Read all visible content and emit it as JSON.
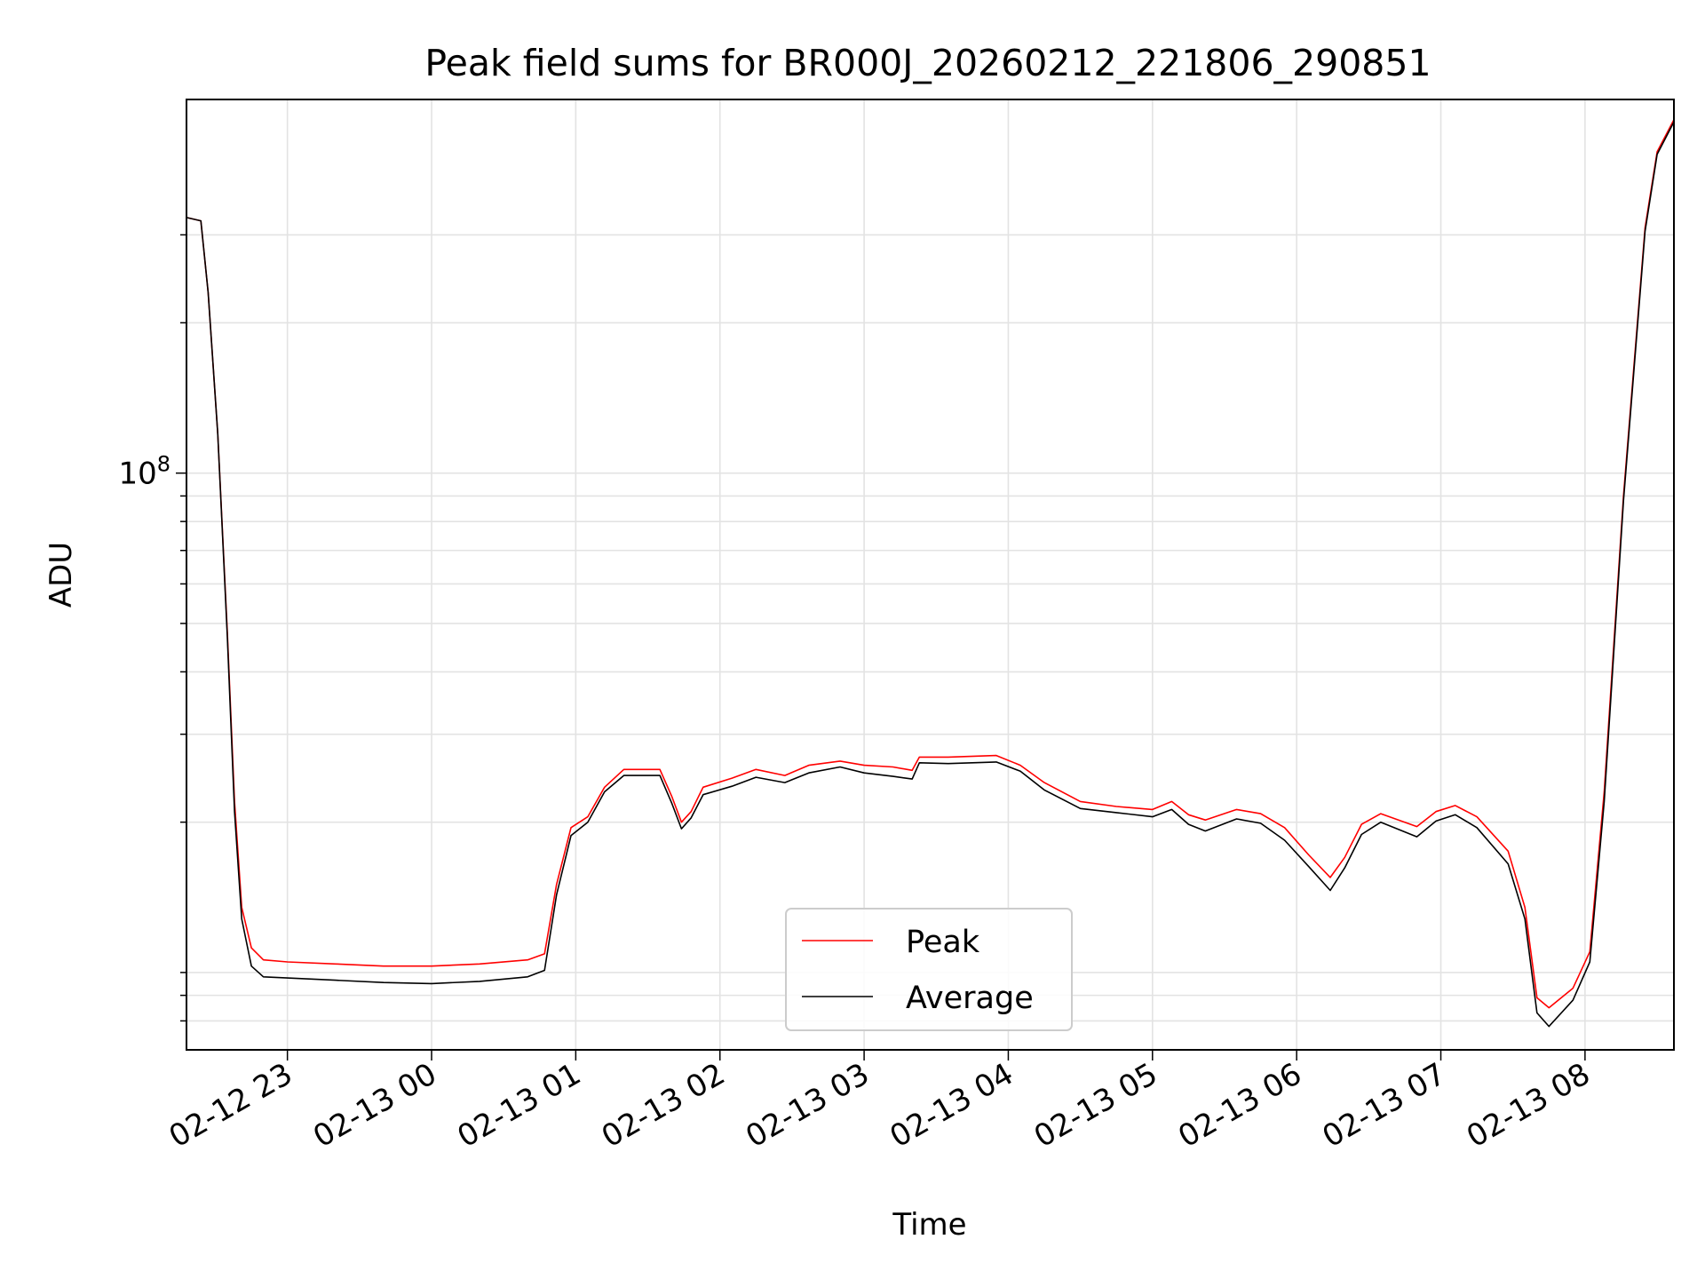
{
  "chart_data": {
    "type": "line",
    "title": "Peak field sums for BR000J_20260212_221806_290851",
    "xlabel": "Time",
    "ylabel": "ADU",
    "y_scale": "log",
    "ylim": [
      7000000,
      560000000
    ],
    "xlim": [
      "2026-02-12 22:18",
      "2026-02-13 08:37"
    ],
    "x_ticks": [
      {
        "t": "2026-02-12 23:00",
        "label": "02-12 23"
      },
      {
        "t": "2026-02-13 00:00",
        "label": "02-13 00"
      },
      {
        "t": "2026-02-13 01:00",
        "label": "02-13 01"
      },
      {
        "t": "2026-02-13 02:00",
        "label": "02-13 02"
      },
      {
        "t": "2026-02-13 03:00",
        "label": "02-13 03"
      },
      {
        "t": "2026-02-13 04:00",
        "label": "02-13 04"
      },
      {
        "t": "2026-02-13 05:00",
        "label": "02-13 05"
      },
      {
        "t": "2026-02-13 06:00",
        "label": "02-13 06"
      },
      {
        "t": "2026-02-13 07:00",
        "label": "02-13 07"
      },
      {
        "t": "2026-02-13 08:00",
        "label": "02-13 08"
      }
    ],
    "y_ticks_major": [
      {
        "value": 100000000,
        "label_base": "10",
        "label_exp": "8"
      }
    ],
    "y_ticks_minor": [
      8000000,
      9000000,
      10000000,
      20000000,
      30000000,
      40000000,
      50000000,
      60000000,
      70000000,
      80000000,
      90000000,
      200000000,
      300000000
    ],
    "grid": true,
    "legend_position": "lower-center",
    "series": [
      {
        "name": "Peak",
        "color": "#ff0000",
        "points": [
          [
            "2026-02-12 22:18",
            325000000
          ],
          [
            "2026-02-12 22:24",
            320000000
          ],
          [
            "2026-02-12 22:27",
            230000000
          ],
          [
            "2026-02-12 22:31",
            120000000
          ],
          [
            "2026-02-12 22:35",
            48000000
          ],
          [
            "2026-02-12 22:38",
            22000000
          ],
          [
            "2026-02-12 22:41",
            13500000
          ],
          [
            "2026-02-12 22:45",
            11200000
          ],
          [
            "2026-02-12 22:50",
            10600000
          ],
          [
            "2026-02-12 23:00",
            10500000
          ],
          [
            "2026-02-12 23:20",
            10400000
          ],
          [
            "2026-02-12 23:40",
            10300000
          ],
          [
            "2026-02-13 00:00",
            10300000
          ],
          [
            "2026-02-13 00:20",
            10400000
          ],
          [
            "2026-02-13 00:40",
            10600000
          ],
          [
            "2026-02-13 00:47",
            10900000
          ],
          [
            "2026-02-13 00:52",
            15000000
          ],
          [
            "2026-02-13 00:58",
            19500000
          ],
          [
            "2026-02-13 01:05",
            20500000
          ],
          [
            "2026-02-13 01:12",
            23500000
          ],
          [
            "2026-02-13 01:20",
            25500000
          ],
          [
            "2026-02-13 01:35",
            25500000
          ],
          [
            "2026-02-13 01:40",
            22500000
          ],
          [
            "2026-02-13 01:44",
            20000000
          ],
          [
            "2026-02-13 01:48",
            21000000
          ],
          [
            "2026-02-13 01:53",
            23500000
          ],
          [
            "2026-02-13 02:05",
            24500000
          ],
          [
            "2026-02-13 02:15",
            25500000
          ],
          [
            "2026-02-13 02:27",
            24800000
          ],
          [
            "2026-02-13 02:37",
            26000000
          ],
          [
            "2026-02-13 02:50",
            26500000
          ],
          [
            "2026-02-13 03:00",
            26000000
          ],
          [
            "2026-02-13 03:12",
            25800000
          ],
          [
            "2026-02-13 03:20",
            25400000
          ],
          [
            "2026-02-13 03:23",
            27000000
          ],
          [
            "2026-02-13 03:35",
            27000000
          ],
          [
            "2026-02-13 03:55",
            27200000
          ],
          [
            "2026-02-13 04:05",
            26000000
          ],
          [
            "2026-02-13 04:15",
            24000000
          ],
          [
            "2026-02-13 04:30",
            22000000
          ],
          [
            "2026-02-13 04:45",
            21500000
          ],
          [
            "2026-02-13 05:00",
            21200000
          ],
          [
            "2026-02-13 05:08",
            22000000
          ],
          [
            "2026-02-13 05:15",
            20700000
          ],
          [
            "2026-02-13 05:22",
            20200000
          ],
          [
            "2026-02-13 05:35",
            21200000
          ],
          [
            "2026-02-13 05:45",
            20800000
          ],
          [
            "2026-02-13 05:55",
            19500000
          ],
          [
            "2026-02-13 06:05",
            17200000
          ],
          [
            "2026-02-13 06:14",
            15500000
          ],
          [
            "2026-02-13 06:20",
            17000000
          ],
          [
            "2026-02-13 06:27",
            19800000
          ],
          [
            "2026-02-13 06:35",
            20800000
          ],
          [
            "2026-02-13 06:50",
            19600000
          ],
          [
            "2026-02-13 06:58",
            21000000
          ],
          [
            "2026-02-13 07:06",
            21600000
          ],
          [
            "2026-02-13 07:15",
            20500000
          ],
          [
            "2026-02-13 07:28",
            17500000
          ],
          [
            "2026-02-13 07:35",
            13500000
          ],
          [
            "2026-02-13 07:40",
            8900000
          ],
          [
            "2026-02-13 07:45",
            8500000
          ],
          [
            "2026-02-13 07:55",
            9300000
          ],
          [
            "2026-02-13 08:02",
            11000000
          ],
          [
            "2026-02-13 08:08",
            23000000
          ],
          [
            "2026-02-13 08:16",
            90000000
          ],
          [
            "2026-02-13 08:25",
            310000000
          ],
          [
            "2026-02-13 08:30",
            440000000
          ],
          [
            "2026-02-13 08:37",
            510000000
          ]
        ]
      },
      {
        "name": "Average",
        "color": "#000000",
        "points": [
          [
            "2026-02-12 22:18",
            325000000
          ],
          [
            "2026-02-12 22:24",
            320000000
          ],
          [
            "2026-02-12 22:27",
            230000000
          ],
          [
            "2026-02-12 22:31",
            120000000
          ],
          [
            "2026-02-12 22:35",
            47000000
          ],
          [
            "2026-02-12 22:38",
            21000000
          ],
          [
            "2026-02-12 22:41",
            12800000
          ],
          [
            "2026-02-12 22:45",
            10300000
          ],
          [
            "2026-02-12 22:50",
            9800000
          ],
          [
            "2026-02-12 23:00",
            9750000
          ],
          [
            "2026-02-12 23:20",
            9650000
          ],
          [
            "2026-02-12 23:40",
            9550000
          ],
          [
            "2026-02-13 00:00",
            9500000
          ],
          [
            "2026-02-13 00:20",
            9600000
          ],
          [
            "2026-02-13 00:40",
            9800000
          ],
          [
            "2026-02-13 00:47",
            10100000
          ],
          [
            "2026-02-13 00:52",
            14300000
          ],
          [
            "2026-02-13 00:58",
            18800000
          ],
          [
            "2026-02-13 01:05",
            20000000
          ],
          [
            "2026-02-13 01:12",
            23000000
          ],
          [
            "2026-02-13 01:20",
            24800000
          ],
          [
            "2026-02-13 01:35",
            24800000
          ],
          [
            "2026-02-13 01:40",
            21800000
          ],
          [
            "2026-02-13 01:44",
            19400000
          ],
          [
            "2026-02-13 01:48",
            20400000
          ],
          [
            "2026-02-13 01:53",
            22700000
          ],
          [
            "2026-02-13 02:05",
            23600000
          ],
          [
            "2026-02-13 02:15",
            24600000
          ],
          [
            "2026-02-13 02:27",
            24000000
          ],
          [
            "2026-02-13 02:37",
            25100000
          ],
          [
            "2026-02-13 02:50",
            25800000
          ],
          [
            "2026-02-13 03:00",
            25100000
          ],
          [
            "2026-02-13 03:12",
            24700000
          ],
          [
            "2026-02-13 03:20",
            24400000
          ],
          [
            "2026-02-13 03:23",
            26300000
          ],
          [
            "2026-02-13 03:35",
            26200000
          ],
          [
            "2026-02-13 03:55",
            26400000
          ],
          [
            "2026-02-13 04:05",
            25300000
          ],
          [
            "2026-02-13 04:15",
            23200000
          ],
          [
            "2026-02-13 04:30",
            21300000
          ],
          [
            "2026-02-13 04:45",
            20900000
          ],
          [
            "2026-02-13 05:00",
            20500000
          ],
          [
            "2026-02-13 05:08",
            21200000
          ],
          [
            "2026-02-13 05:15",
            19800000
          ],
          [
            "2026-02-13 05:22",
            19200000
          ],
          [
            "2026-02-13 05:35",
            20300000
          ],
          [
            "2026-02-13 05:45",
            19900000
          ],
          [
            "2026-02-13 05:55",
            18400000
          ],
          [
            "2026-02-13 06:05",
            16300000
          ],
          [
            "2026-02-13 06:14",
            14600000
          ],
          [
            "2026-02-13 06:20",
            16200000
          ],
          [
            "2026-02-13 06:27",
            18900000
          ],
          [
            "2026-02-13 06:35",
            20000000
          ],
          [
            "2026-02-13 06:50",
            18700000
          ],
          [
            "2026-02-13 06:58",
            20100000
          ],
          [
            "2026-02-13 07:06",
            20700000
          ],
          [
            "2026-02-13 07:15",
            19500000
          ],
          [
            "2026-02-13 07:28",
            16500000
          ],
          [
            "2026-02-13 07:35",
            12800000
          ],
          [
            "2026-02-13 07:40",
            8300000
          ],
          [
            "2026-02-13 07:45",
            7800000
          ],
          [
            "2026-02-13 07:55",
            8800000
          ],
          [
            "2026-02-13 08:02",
            10500000
          ],
          [
            "2026-02-13 08:08",
            22000000
          ],
          [
            "2026-02-13 08:16",
            88000000
          ],
          [
            "2026-02-13 08:25",
            305000000
          ],
          [
            "2026-02-13 08:30",
            435000000
          ],
          [
            "2026-02-13 08:37",
            505000000
          ]
        ]
      }
    ]
  }
}
